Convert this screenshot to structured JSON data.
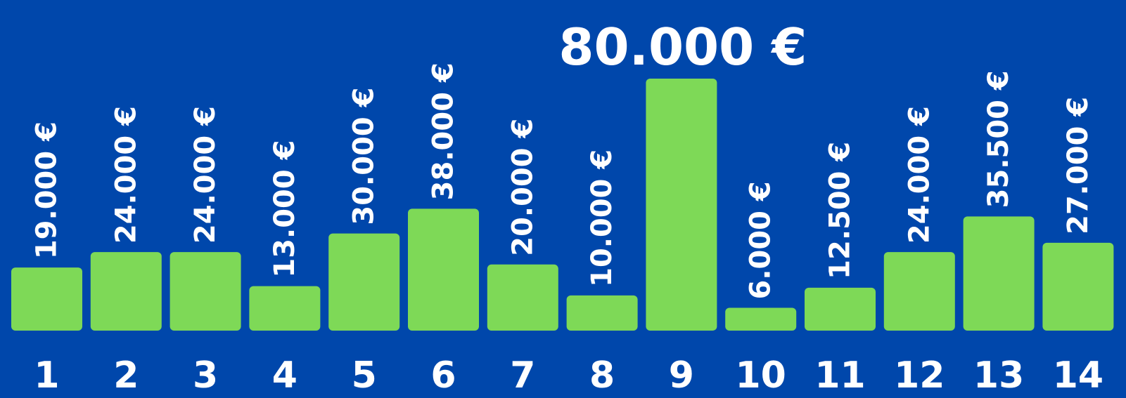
{
  "chart_data": {
    "type": "bar",
    "categories": [
      "1",
      "2",
      "3",
      "4",
      "5",
      "6",
      "7",
      "8",
      "9",
      "10",
      "11",
      "12",
      "13",
      "14"
    ],
    "values": [
      19000,
      24000,
      24000,
      13000,
      30000,
      38000,
      20000,
      10000,
      80000,
      6000,
      12500,
      24000,
      35500,
      27000
    ],
    "data_labels": [
      "19.000 €",
      "24.000 €",
      "24.000 €",
      "13.000 €",
      "30.000 €",
      "38.000 €",
      "20.000 €",
      "10.000 €",
      "80.000 €",
      "6.000 €",
      "12.500 €",
      "24.000 €",
      "35.500 €",
      "27.000 €"
    ],
    "highlight_index": 8,
    "ylim": [
      0,
      80000
    ],
    "grid": false,
    "title": "",
    "xlabel": "",
    "ylabel": "",
    "colors": {
      "background": "#0047AB",
      "bar": "#7ED957",
      "text": "#FFFFFF"
    }
  }
}
